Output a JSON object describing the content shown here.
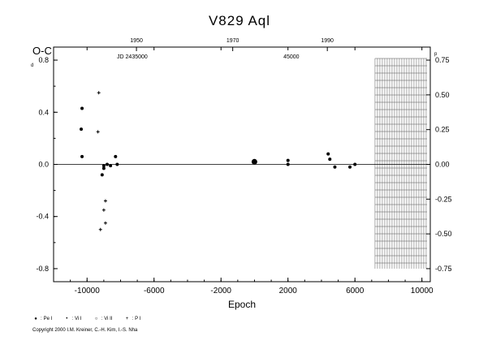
{
  "chart_data": {
    "type": "scatter",
    "title": "V829  Aql",
    "ylabel": "O-C",
    "xlabel": "Epoch",
    "xlim": [
      -12000,
      10500
    ],
    "ylim": [
      -0.9,
      0.9
    ],
    "x_ticks": [
      -10000,
      -6000,
      -2000,
      2000,
      6000,
      10000
    ],
    "y_ticks_left": [
      0.8,
      0.4,
      0.0,
      -0.4,
      -0.8
    ],
    "y_ticks_right": [
      0.75,
      0.5,
      0.25,
      0.0,
      -0.25,
      -0.5,
      -0.75
    ],
    "top_year_ticks": [
      "1950",
      "1970",
      "1990"
    ],
    "top_jd_labels": [
      "JD 2435000",
      "45000"
    ],
    "grid": false,
    "legend_position": "bottom-left",
    "series": [
      {
        "name": "Pe I",
        "marker": "large-dot",
        "points": [
          [
            -4,
            0.02
          ]
        ]
      },
      {
        "name": "Vi I",
        "marker": "dot",
        "points": [
          [
            -10300,
            0.06
          ],
          [
            -10350,
            0.27
          ],
          [
            -10300,
            0.43
          ],
          [
            -9100,
            -0.08
          ],
          [
            -9000,
            -0.03
          ],
          [
            -9000,
            -0.01
          ],
          [
            -8800,
            0.0
          ],
          [
            -8600,
            -0.01
          ],
          [
            -8200,
            0.0
          ],
          [
            -8300,
            0.06
          ],
          [
            2000,
            0.0
          ],
          [
            2000,
            0.03
          ],
          [
            4400,
            0.08
          ],
          [
            4500,
            0.04
          ],
          [
            4800,
            -0.02
          ],
          [
            5700,
            -0.02
          ],
          [
            6000,
            0.0
          ]
        ]
      },
      {
        "name": "Vi II",
        "marker": "circle",
        "points": []
      },
      {
        "name": "P I",
        "marker": "plus",
        "points": [
          [
            -9300,
            0.55
          ],
          [
            -9350,
            0.25
          ],
          [
            -8900,
            -0.28
          ],
          [
            -9000,
            -0.35
          ],
          [
            -8900,
            -0.45
          ],
          [
            -9200,
            -0.5
          ]
        ]
      }
    ]
  },
  "legend": {
    "pe_i": "Pe I",
    "vi_i": "Vi I",
    "vi_ii": "Vi II",
    "p_i": "P I"
  },
  "copyright": "Copyright 2000 I.M. Kreiner, C.-H. Kim, I.-S. Nha",
  "superscripts": {
    "left": "d",
    "right": "p"
  }
}
